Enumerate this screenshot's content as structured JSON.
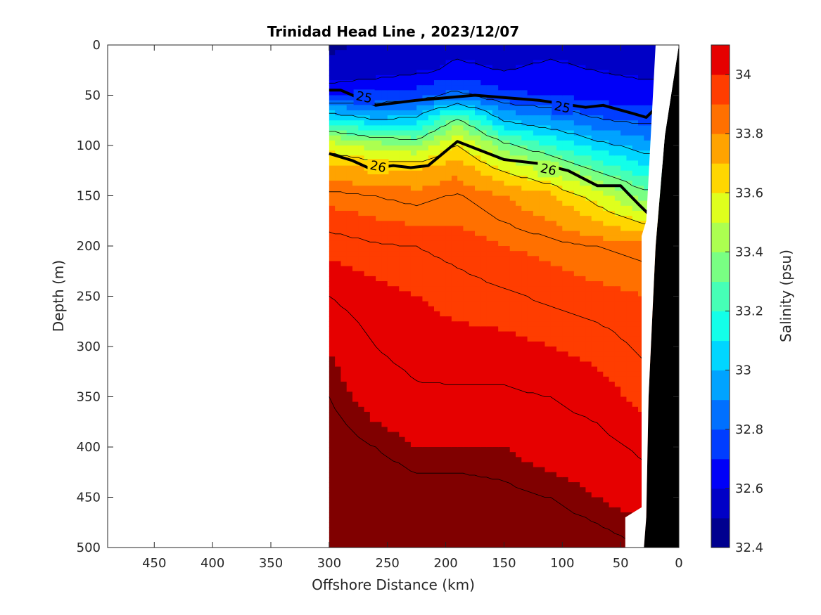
{
  "chart_data": {
    "type": "heatmap",
    "title": "Trinidad Head Line , 2023/12/07",
    "xlabel": "Offshore Distance (km)",
    "ylabel": "Depth (m)",
    "xlim": [
      490,
      0
    ],
    "ylim": [
      500,
      0
    ],
    "x_ticks": [
      "450",
      "400",
      "350",
      "300",
      "250",
      "200",
      "150",
      "100",
      "50",
      "0"
    ],
    "y_ticks": [
      "0",
      "50",
      "100",
      "150",
      "200",
      "250",
      "300",
      "350",
      "400",
      "450",
      "500"
    ],
    "colorbar": {
      "label": "Salinity (psu)",
      "range": [
        32.4,
        34.1
      ],
      "levels": [
        32.4,
        32.5,
        32.6,
        32.7,
        32.8,
        32.9,
        33.0,
        33.1,
        33.2,
        33.3,
        33.4,
        33.5,
        33.6,
        33.7,
        33.8,
        33.9,
        34.0,
        34.1
      ],
      "colors": [
        "#00008f",
        "#0000c6",
        "#0000f8",
        "#003dff",
        "#0070ff",
        "#00a3ff",
        "#00d6ff",
        "#13ffe9",
        "#46ffb6",
        "#79ff83",
        "#acff50",
        "#dfff1d",
        "#ffd600",
        "#ffa300",
        "#ff7000",
        "#ff3d00",
        "#e60000",
        "#b30000"
      ],
      "tick_labels": [
        "32.4",
        "32.6",
        "32.8",
        "33",
        "33.2",
        "33.4",
        "33.6",
        "33.8",
        "34"
      ]
    },
    "sigma_contours": [
      {
        "label": "25",
        "points": [
          [
            300,
            45
          ],
          [
            290,
            45
          ],
          [
            260,
            60
          ],
          [
            225,
            55
          ],
          [
            175,
            50
          ],
          [
            120,
            55
          ],
          [
            80,
            62
          ],
          [
            65,
            60
          ],
          [
            40,
            68
          ],
          [
            28,
            72
          ],
          [
            20,
            63
          ]
        ]
      },
      {
        "label": "26",
        "points": [
          [
            300,
            108
          ],
          [
            280,
            115
          ],
          [
            265,
            123
          ],
          [
            245,
            120
          ],
          [
            230,
            122
          ],
          [
            215,
            120
          ],
          [
            190,
            96
          ],
          [
            150,
            114
          ],
          [
            120,
            118
          ],
          [
            95,
            125
          ],
          [
            70,
            140
          ],
          [
            50,
            140
          ],
          [
            35,
            158
          ],
          [
            20,
            175
          ]
        ]
      }
    ],
    "salinity_columns": {
      "x": [
        300,
        260,
        225,
        190,
        150,
        110,
        70,
        30
      ],
      "depths": [
        0,
        25,
        50,
        75,
        100,
        125,
        150,
        200,
        250,
        300,
        350,
        400,
        450,
        500
      ],
      "values": [
        [
          32.48,
          32.53,
          32.68,
          33.15,
          33.55,
          33.75,
          33.88,
          33.98,
          34.05,
          34.1,
          34.12,
          34.14,
          34.16,
          34.17
        ],
        [
          32.52,
          32.55,
          32.72,
          33.02,
          33.45,
          33.72,
          33.85,
          33.96,
          34.02,
          34.05,
          34.08,
          34.12,
          34.15,
          34.16
        ],
        [
          32.55,
          32.58,
          32.75,
          33.05,
          33.4,
          33.72,
          33.83,
          33.95,
          34.0,
          34.03,
          34.06,
          34.1,
          34.14,
          34.16
        ],
        [
          32.58,
          32.62,
          32.85,
          33.35,
          33.62,
          33.78,
          33.86,
          33.93,
          33.98,
          34.02,
          34.06,
          34.1,
          34.14,
          34.16
        ],
        [
          32.55,
          32.6,
          32.72,
          33.0,
          33.35,
          33.6,
          33.8,
          33.9,
          33.96,
          34.02,
          34.06,
          34.1,
          34.13,
          34.15
        ],
        [
          32.58,
          32.62,
          32.7,
          32.92,
          33.2,
          33.48,
          33.72,
          33.88,
          33.94,
          34.0,
          34.05,
          34.08,
          34.12,
          34.15
        ],
        [
          32.55,
          32.6,
          32.66,
          32.82,
          33.05,
          33.3,
          33.55,
          33.85,
          33.92,
          33.98,
          34.03,
          34.07,
          34.1,
          34.14
        ],
        [
          32.5,
          32.58,
          32.64,
          32.78,
          32.95,
          33.15,
          33.35,
          33.83,
          33.9,
          33.94,
          33.98,
          34.04,
          34.08,
          34.12
        ]
      ]
    }
  }
}
